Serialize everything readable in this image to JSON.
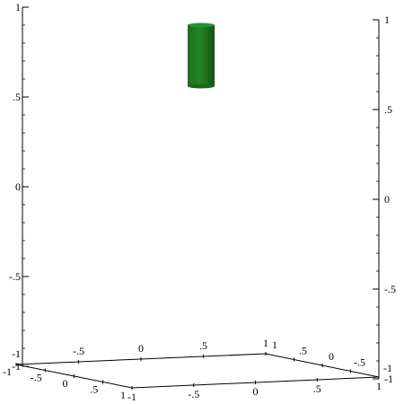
{
  "chart_data": {
    "type": "3d-cylinder",
    "title": "",
    "xlabel": "",
    "ylabel": "",
    "zlabel": "",
    "xlim": [
      -1,
      1
    ],
    "ylim": [
      -1,
      1
    ],
    "zlim": [
      -1,
      1
    ],
    "x_ticks": [
      "-1",
      "-.5",
      "0",
      ".5",
      "1"
    ],
    "y_ticks": [
      "-1",
      "-.5",
      "0",
      ".5",
      "1"
    ],
    "z_ticks": [
      "-1",
      "-.5",
      "0",
      ".5",
      "1"
    ],
    "grid": false,
    "shapes": [
      {
        "kind": "cylinder",
        "center": [
          0,
          0
        ],
        "radius": 0.1,
        "z_range": [
          0.58,
          0.92
        ],
        "color": "#1f7a1f"
      }
    ]
  }
}
